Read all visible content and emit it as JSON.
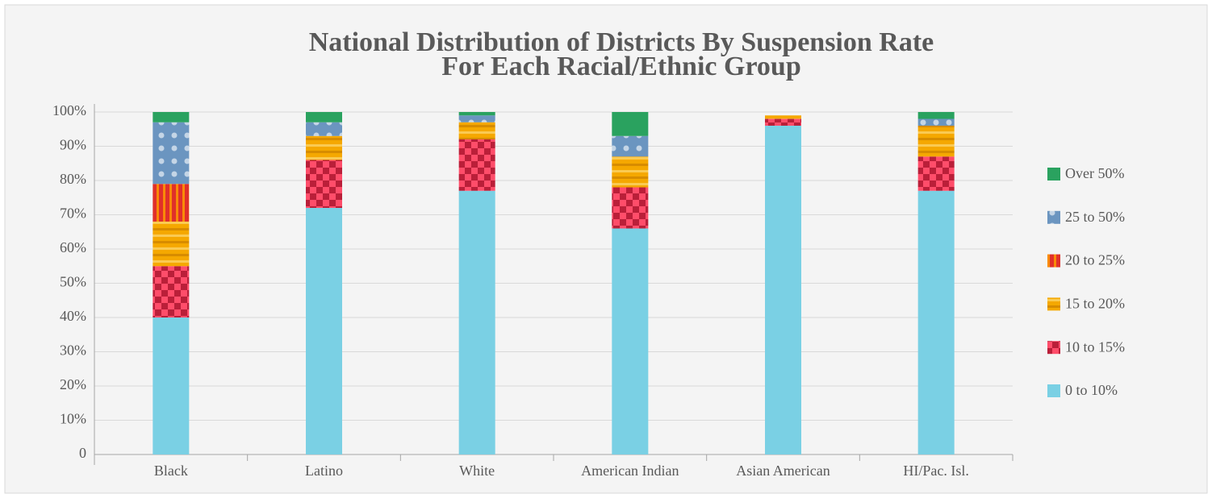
{
  "chart_data": {
    "type": "stacked_bar",
    "title": [
      "National Distribution of Districts By Suspension Rate",
      "For Each Racial/Ethnic Group"
    ],
    "categories": [
      "Black",
      "Latino",
      "White",
      "American Indian",
      "Asian American",
      "HI/Pac. Isl."
    ],
    "series": [
      {
        "name": "0 to 10%",
        "color": "#7ad0e4",
        "values": [
          40,
          72,
          77,
          66,
          96,
          77
        ]
      },
      {
        "name": "10 to 15%",
        "color": "#ff4d6a",
        "values": [
          15,
          14,
          15,
          12,
          2,
          10
        ]
      },
      {
        "name": "15 to 20%",
        "color": "#f5a800",
        "values": [
          13,
          7,
          5,
          9,
          1,
          9
        ]
      },
      {
        "name": "20 to 25%",
        "color": "#e0302a",
        "values": [
          11,
          0,
          0,
          0,
          0,
          0
        ]
      },
      {
        "name": "25 to 50%",
        "color": "#6b95c0",
        "values": [
          18,
          4,
          2,
          6,
          0,
          2
        ]
      },
      {
        "name": "Over 50%",
        "color": "#2aa25f",
        "values": [
          3,
          3,
          1,
          7,
          0,
          2
        ]
      }
    ],
    "ylim": [
      0,
      100
    ],
    "yticks": [
      0,
      {
        "value": 10,
        "label": "10%"
      },
      {
        "value": 20,
        "label": "20%"
      },
      {
        "value": 30,
        "label": "30%"
      },
      {
        "value": 40,
        "label": "40%"
      },
      {
        "value": 50,
        "label": "50%"
      },
      {
        "value": 60,
        "label": "60%"
      },
      {
        "value": 70,
        "label": "70%"
      },
      {
        "value": 80,
        "label": "80%"
      },
      {
        "value": 90,
        "label": "90%"
      },
      {
        "value": 100,
        "label": "100%"
      }
    ],
    "grid": true,
    "legend": "right"
  }
}
